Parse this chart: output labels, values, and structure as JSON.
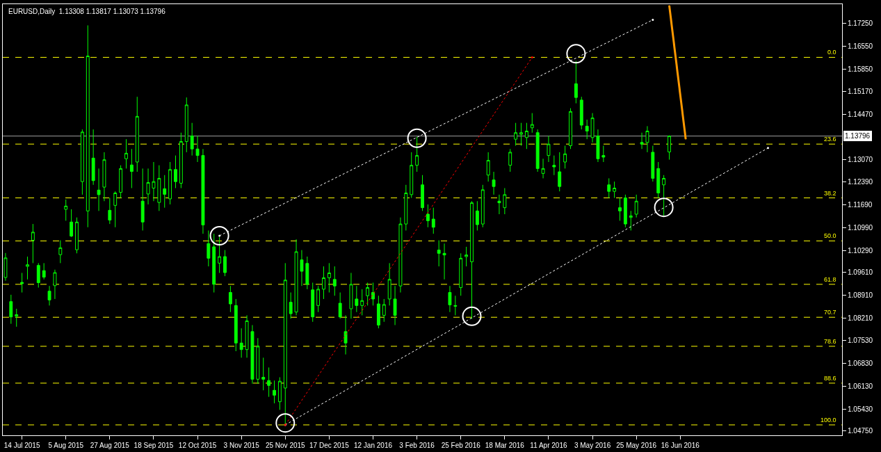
{
  "chart_data": {
    "type": "candlestick",
    "title": "EURUSD,Daily  1.13308 1.13817 1.13073 1.13796",
    "color": "#00ff00",
    "grid": false,
    "categories": [
      null,
      null,
      null,
      "14 Jul 2015",
      null,
      null,
      null,
      null,
      null,
      null,
      null,
      "5 Aug 2015",
      null,
      null,
      null,
      null,
      null,
      null,
      null,
      "27 Aug 2015",
      null,
      null,
      null,
      null,
      null,
      null,
      null,
      "18 Sep 2015",
      null,
      null,
      null,
      null,
      null,
      null,
      null,
      "12 Oct 2015",
      null,
      null,
      null,
      null,
      null,
      null,
      null,
      "3 Nov 2015",
      null,
      null,
      null,
      null,
      null,
      null,
      null,
      "25 Nov 2015",
      null,
      null,
      null,
      null,
      null,
      null,
      null,
      "17 Dec 2015",
      null,
      null,
      null,
      null,
      null,
      null,
      null,
      "12 Jan 2016",
      null,
      null,
      null,
      null,
      null,
      null,
      null,
      "3 Feb 2016",
      null,
      null,
      null,
      null,
      null,
      null,
      null,
      "25 Feb 2016",
      null,
      null,
      null,
      null,
      null,
      null,
      null,
      "18 Mar 2016",
      null,
      null,
      null,
      null,
      null,
      null,
      null,
      "11 Apr 2016",
      null,
      null,
      null,
      null,
      null,
      null,
      null,
      "3 May 2016",
      null,
      null,
      null,
      null,
      null,
      null,
      null,
      "25 May 2016",
      null,
      null,
      null,
      null,
      null,
      null,
      null,
      "16 Jun 2016",
      null,
      null,
      null,
      null,
      null,
      null,
      null,
      null,
      null,
      null,
      null,
      null,
      null,
      null,
      null,
      null,
      null,
      null,
      null,
      null,
      null,
      null,
      null,
      null,
      null,
      null,
      null,
      null,
      null
    ],
    "ohlc": [
      [
        1.0946,
        1.1021,
        1.0936,
        1.1006
      ],
      [
        1.0872,
        1.0893,
        1.0804,
        1.0825
      ],
      [
        1.0827,
        1.085,
        1.0795,
        1.0832
      ],
      [
        1.0931,
        1.096,
        1.09,
        1.0927
      ],
      [
        1.098,
        1.101,
        1.094,
        1.0985
      ],
      [
        1.106,
        1.111,
        1.099,
        1.1085
      ],
      [
        1.0983,
        1.099,
        1.0915,
        1.093
      ],
      [
        1.0967,
        1.099,
        1.094,
        1.0947
      ],
      [
        1.0904,
        1.092,
        1.086,
        1.0877
      ],
      [
        1.0921,
        1.097,
        1.088,
        1.0961
      ],
      [
        1.1016,
        1.106,
        1.099,
        1.1037
      ],
      [
        1.1155,
        1.1185,
        1.112,
        1.1165
      ],
      [
        1.1116,
        1.1155,
        1.107,
        1.1073
      ],
      [
        1.1031,
        1.113,
        1.102,
        1.1116
      ],
      [
        1.124,
        1.14,
        1.12,
        1.1392
      ],
      [
        1.115,
        1.1719,
        1.11,
        1.1625
      ],
      [
        1.1312,
        1.14,
        1.123,
        1.1243
      ],
      [
        1.1214,
        1.128,
        1.115,
        1.12
      ],
      [
        1.1223,
        1.133,
        1.118,
        1.1307
      ],
      [
        1.1152,
        1.119,
        1.111,
        1.1122
      ],
      [
        1.1167,
        1.121,
        1.11,
        1.1205
      ],
      [
        1.1207,
        1.129,
        1.119,
        1.128
      ],
      [
        1.131,
        1.137,
        1.128,
        1.1327
      ],
      [
        1.1291,
        1.134,
        1.122,
        1.1271
      ],
      [
        1.13,
        1.15,
        1.127,
        1.144
      ],
      [
        1.118,
        1.128,
        1.109,
        1.1116
      ],
      [
        1.1202,
        1.128,
        1.117,
        1.1237
      ],
      [
        1.122,
        1.13,
        1.118,
        1.124
      ],
      [
        1.1176,
        1.129,
        1.115,
        1.125
      ],
      [
        1.1218,
        1.126,
        1.116,
        1.1201
      ],
      [
        1.1187,
        1.13,
        1.117,
        1.1277
      ],
      [
        1.1277,
        1.132,
        1.122,
        1.124
      ],
      [
        1.1235,
        1.139,
        1.122,
        1.1363
      ],
      [
        1.1363,
        1.1498,
        1.133,
        1.1475
      ],
      [
        1.138,
        1.142,
        1.132,
        1.134
      ],
      [
        1.134,
        1.138,
        1.13,
        1.132
      ],
      [
        1.132,
        1.134,
        1.108,
        1.1107
      ],
      [
        1.105,
        1.109,
        1.098,
        1.1005
      ],
      [
        1.104,
        1.108,
        1.09,
        1.0925
      ],
      [
        1.099,
        1.107,
        1.096,
        1.101
      ],
      [
        1.101,
        1.103,
        1.095,
        1.0961
      ],
      [
        1.09,
        1.092,
        1.084,
        1.0865
      ],
      [
        1.086,
        1.088,
        1.072,
        1.0745
      ],
      [
        1.0745,
        1.079,
        1.07,
        1.0725
      ],
      [
        1.0725,
        1.083,
        1.07,
        1.0813
      ],
      [
        1.078,
        1.08,
        1.062,
        1.0634
      ],
      [
        1.0634,
        1.076,
        1.062,
        1.0735
      ],
      [
        1.064,
        1.07,
        1.06,
        1.0634
      ],
      [
        1.063,
        1.067,
        1.058,
        1.0615
      ],
      [
        1.06,
        1.063,
        1.056,
        1.0585
      ],
      [
        1.0565,
        1.064,
        1.054,
        1.0628
      ],
      [
        1.0607,
        1.099,
        1.0494,
        1.0938
      ],
      [
        1.087,
        1.09,
        1.082,
        1.0835
      ],
      [
        1.084,
        1.1063,
        1.083,
        1.1025
      ],
      [
        1.1,
        1.103,
        1.092,
        1.0965
      ],
      [
        1.0989,
        1.101,
        1.091,
        1.0925
      ],
      [
        1.0908,
        1.093,
        1.081,
        1.0825
      ],
      [
        1.086,
        1.092,
        1.084,
        1.091
      ],
      [
        1.091,
        1.098,
        1.088,
        1.0945
      ],
      [
        1.0945,
        1.099,
        1.09,
        1.096
      ],
      [
        1.094,
        1.098,
        1.089,
        1.092
      ],
      [
        1.0867,
        1.09,
        1.082,
        1.0825
      ],
      [
        1.078,
        1.083,
        1.071,
        1.0745
      ],
      [
        1.085,
        1.096,
        1.082,
        1.0925
      ],
      [
        1.088,
        1.092,
        1.084,
        1.086
      ],
      [
        1.086,
        1.091,
        1.083,
        1.0875
      ],
      [
        1.089,
        1.093,
        1.086,
        1.0915
      ],
      [
        1.09,
        1.093,
        1.086,
        1.088
      ],
      [
        1.0865,
        1.089,
        1.079,
        1.08
      ],
      [
        1.083,
        1.088,
        1.081,
        1.0863
      ],
      [
        1.088,
        1.099,
        1.086,
        1.094
      ],
      [
        1.088,
        1.092,
        1.08,
        1.083
      ],
      [
        1.092,
        1.113,
        1.09,
        1.111
      ],
      [
        1.111,
        1.123,
        1.109,
        1.1205
      ],
      [
        1.12,
        1.133,
        1.119,
        1.129
      ],
      [
        1.129,
        1.1377,
        1.127,
        1.132
      ],
      [
        1.123,
        1.126,
        1.115,
        1.116
      ],
      [
        1.114,
        1.117,
        1.11,
        1.112
      ],
      [
        1.1125,
        1.116,
        1.108,
        1.11
      ],
      [
        1.103,
        1.106,
        1.098,
        1.102
      ],
      [
        1.102,
        1.105,
        1.094,
        1.1015
      ],
      [
        1.09,
        1.092,
        1.084,
        1.0862
      ],
      [
        1.086,
        1.089,
        1.083,
        1.0858
      ],
      [
        1.0915,
        1.102,
        1.089,
        1.1005
      ],
      [
        1.101,
        1.104,
        1.098,
        1.1015
      ],
      [
        1.0994,
        1.118,
        1.0819,
        1.1175
      ],
      [
        1.115,
        1.118,
        1.109,
        1.1108
      ],
      [
        1.111,
        1.123,
        1.11,
        1.1215
      ],
      [
        1.126,
        1.133,
        1.124,
        1.1305
      ],
      [
        1.1245,
        1.127,
        1.12,
        1.1225
      ],
      [
        1.118,
        1.12,
        1.114,
        1.1175
      ],
      [
        1.116,
        1.122,
        1.114,
        1.12
      ],
      [
        1.129,
        1.134,
        1.127,
        1.133
      ],
      [
        1.137,
        1.142,
        1.135,
        1.139
      ],
      [
        1.1385,
        1.142,
        1.135,
        1.139
      ],
      [
        1.1375,
        1.142,
        1.134,
        1.1395
      ],
      [
        1.1405,
        1.145,
        1.139,
        1.1415
      ],
      [
        1.139,
        1.14,
        1.127,
        1.128
      ],
      [
        1.1265,
        1.131,
        1.125,
        1.128
      ],
      [
        1.132,
        1.138,
        1.13,
        1.1355
      ],
      [
        1.129,
        1.132,
        1.126,
        1.1285
      ],
      [
        1.127,
        1.133,
        1.121,
        1.1225
      ],
      [
        1.13,
        1.135,
        1.128,
        1.1325
      ],
      [
        1.135,
        1.1465,
        1.134,
        1.1455
      ],
      [
        1.154,
        1.161,
        1.148,
        1.1498
      ],
      [
        1.149,
        1.15,
        1.14,
        1.1413
      ],
      [
        1.141,
        1.143,
        1.137,
        1.1395
      ],
      [
        1.1375,
        1.145,
        1.136,
        1.1435
      ],
      [
        1.138,
        1.14,
        1.13,
        1.131
      ],
      [
        1.132,
        1.135,
        1.13,
        1.1315
      ],
      [
        1.123,
        1.125,
        1.119,
        1.121
      ],
      [
        1.121,
        1.124,
        1.119,
        1.122
      ],
      [
        1.116,
        1.119,
        1.112,
        1.115
      ],
      [
        1.119,
        1.12,
        1.11,
        1.111
      ],
      [
        1.113,
        1.115,
        1.109,
        1.1135
      ],
      [
        1.114,
        1.12,
        1.113,
        1.118
      ],
      [
        1.136,
        1.139,
        1.134,
        1.1355
      ],
      [
        1.136,
        1.141,
        1.133,
        1.1395
      ],
      [
        1.133,
        1.135,
        1.124,
        1.125
      ],
      [
        1.128,
        1.13,
        1.119,
        1.1205
      ],
      [
        1.123,
        1.126,
        1.1135,
        1.125
      ],
      [
        1.13308,
        1.13817,
        1.13073,
        1.13796
      ],
      null,
      null,
      null,
      null,
      null,
      null,
      null,
      null,
      null,
      null,
      null,
      null,
      null,
      null,
      null,
      null,
      null,
      null,
      null,
      null,
      null,
      null,
      null,
      null,
      null,
      null,
      null,
      null,
      null,
      null,
      null
    ],
    "series": [
      {
        "type": "line",
        "color": "#ffffff",
        "line_style": "dotted",
        "values": [
          null,
          null,
          null,
          null,
          null,
          null,
          null,
          null,
          null,
          null,
          null,
          null,
          null,
          null,
          null,
          null,
          null,
          null,
          null,
          null,
          null,
          null,
          null,
          null,
          null,
          null,
          null,
          null,
          null,
          null,
          null,
          null,
          null,
          null,
          null,
          null,
          null,
          null,
          null,
          1.1074,
          null,
          null,
          null,
          null,
          null,
          null,
          null,
          null,
          null,
          null,
          null,
          null,
          null,
          null,
          null,
          null,
          null,
          null,
          null,
          null,
          null,
          null,
          null,
          null,
          null,
          null,
          null,
          null,
          null,
          null,
          null,
          null,
          null,
          null,
          null,
          null,
          null,
          null,
          null,
          null,
          null,
          null,
          null,
          null,
          null,
          null,
          null,
          null,
          null,
          null,
          null,
          null,
          null,
          null,
          null,
          null,
          null,
          null,
          null,
          null,
          null,
          null,
          null,
          null,
          null,
          null,
          null,
          null,
          null,
          null,
          null,
          null,
          null,
          null,
          null,
          null,
          null,
          null,
          1.1736,
          null,
          null,
          null,
          null,
          null,
          null,
          null,
          null,
          null,
          null,
          null,
          null,
          null,
          null,
          null,
          null,
          null,
          null,
          null,
          null,
          null,
          null,
          null,
          null,
          null,
          null,
          null,
          null,
          null,
          null,
          null,
          null,
          null,
          null
        ]
      },
      {
        "type": "line",
        "color": "#ffffff",
        "line_style": "dotted",
        "values": [
          null,
          null,
          null,
          null,
          null,
          null,
          null,
          null,
          null,
          null,
          null,
          null,
          null,
          null,
          null,
          null,
          null,
          null,
          null,
          null,
          null,
          null,
          null,
          null,
          null,
          null,
          null,
          null,
          null,
          null,
          null,
          null,
          null,
          null,
          null,
          null,
          null,
          null,
          null,
          null,
          null,
          null,
          null,
          null,
          null,
          null,
          null,
          null,
          null,
          null,
          null,
          1.0494,
          null,
          null,
          null,
          null,
          null,
          null,
          null,
          null,
          null,
          null,
          null,
          null,
          null,
          null,
          null,
          null,
          null,
          null,
          null,
          null,
          null,
          null,
          null,
          null,
          null,
          null,
          null,
          null,
          null,
          null,
          null,
          null,
          null,
          null,
          null,
          null,
          null,
          null,
          null,
          null,
          null,
          null,
          null,
          null,
          null,
          null,
          null,
          null,
          null,
          null,
          null,
          null,
          null,
          null,
          null,
          null,
          null,
          null,
          null,
          null,
          null,
          null,
          null,
          null,
          null,
          null,
          null,
          null,
          null,
          null,
          null,
          null,
          null,
          null,
          null,
          null,
          null,
          null,
          null,
          null,
          null,
          null,
          null,
          null,
          null,
          null,
          null,
          1.1343,
          null,
          null,
          null,
          null,
          null,
          null,
          null,
          null,
          null,
          null,
          null,
          null,
          null
        ]
      },
      {
        "type": "line",
        "color": "#ff0000",
        "line_style": "dotted",
        "values": [
          null,
          null,
          null,
          null,
          null,
          null,
          null,
          null,
          null,
          null,
          null,
          null,
          null,
          null,
          null,
          null,
          null,
          null,
          null,
          null,
          null,
          null,
          null,
          null,
          null,
          null,
          null,
          null,
          null,
          null,
          null,
          null,
          null,
          null,
          null,
          null,
          null,
          null,
          null,
          null,
          null,
          null,
          null,
          null,
          null,
          null,
          null,
          null,
          null,
          null,
          null,
          1.0494,
          null,
          null,
          null,
          null,
          null,
          null,
          null,
          null,
          null,
          null,
          null,
          null,
          null,
          null,
          null,
          null,
          null,
          null,
          null,
          null,
          null,
          null,
          null,
          null,
          null,
          null,
          null,
          null,
          null,
          null,
          null,
          null,
          null,
          null,
          null,
          null,
          null,
          null,
          null,
          null,
          null,
          null,
          null,
          null,
          1.1621,
          null,
          null,
          null,
          null,
          null,
          null,
          null,
          null,
          null,
          null,
          null,
          null,
          null,
          null,
          null,
          null,
          null,
          null,
          null,
          null,
          null,
          null,
          null,
          null,
          null,
          null,
          null,
          null,
          null,
          null,
          null,
          null,
          null,
          null,
          null,
          null,
          null,
          null,
          null,
          null,
          null,
          null,
          null,
          null,
          null,
          null,
          null,
          null,
          null,
          null,
          null,
          null,
          null,
          null,
          null,
          null
        ]
      },
      {
        "type": "scatter",
        "color": "#ffffff",
        "marker": "circle",
        "values": [
          null,
          null,
          null,
          null,
          null,
          null,
          null,
          null,
          null,
          null,
          null,
          null,
          null,
          null,
          null,
          null,
          null,
          null,
          null,
          null,
          null,
          null,
          null,
          null,
          null,
          null,
          null,
          null,
          null,
          null,
          null,
          null,
          null,
          null,
          null,
          null,
          null,
          null,
          null,
          1.1074,
          null,
          null,
          null,
          null,
          null,
          null,
          null,
          null,
          null,
          null,
          null,
          1.05,
          null,
          null,
          null,
          null,
          null,
          null,
          null,
          null,
          null,
          null,
          null,
          null,
          null,
          null,
          null,
          null,
          null,
          null,
          null,
          null,
          null,
          null,
          null,
          1.1373,
          null,
          null,
          null,
          null,
          null,
          null,
          null,
          null,
          null,
          1.0827,
          null,
          null,
          null,
          null,
          null,
          null,
          null,
          null,
          null,
          null,
          null,
          null,
          null,
          null,
          null,
          null,
          null,
          null,
          1.1632,
          null,
          null,
          null,
          null,
          null,
          null,
          null,
          null,
          null,
          null,
          null,
          null,
          null,
          null,
          null,
          1.1161,
          null,
          null,
          null,
          null,
          null,
          null,
          null,
          null,
          null,
          null,
          null,
          null,
          null,
          null,
          null,
          null,
          null,
          null,
          null,
          null,
          null,
          null,
          null,
          null,
          null,
          null,
          null,
          null,
          null,
          null,
          null,
          null
        ]
      },
      {
        "type": "line",
        "color": "#ff9900",
        "line_style": "solid",
        "values": [
          null,
          null,
          null,
          null,
          null,
          null,
          null,
          null,
          null,
          null,
          null,
          null,
          null,
          null,
          null,
          null,
          null,
          null,
          null,
          null,
          null,
          null,
          null,
          null,
          null,
          null,
          null,
          null,
          null,
          null,
          null,
          null,
          null,
          null,
          null,
          null,
          null,
          null,
          null,
          null,
          null,
          null,
          null,
          null,
          null,
          null,
          null,
          null,
          null,
          null,
          null,
          null,
          null,
          null,
          null,
          null,
          null,
          null,
          null,
          null,
          null,
          null,
          null,
          null,
          null,
          null,
          null,
          null,
          null,
          null,
          null,
          null,
          null,
          null,
          null,
          null,
          null,
          null,
          null,
          null,
          null,
          null,
          null,
          null,
          null,
          null,
          null,
          null,
          null,
          null,
          null,
          null,
          null,
          null,
          null,
          null,
          null,
          null,
          null,
          null,
          null,
          null,
          null,
          null,
          null,
          null,
          null,
          null,
          null,
          null,
          null,
          null,
          null,
          null,
          null,
          null,
          null,
          null,
          null,
          null,
          null,
          1.178,
          null,
          null,
          1.137,
          null,
          null,
          null,
          null,
          null,
          null,
          null,
          null,
          null,
          null,
          null,
          null,
          null,
          null,
          null,
          null,
          null,
          null,
          null,
          null,
          null,
          null,
          null,
          null,
          null,
          null,
          null,
          null
        ]
      }
    ],
    "ref_lines": [
      {
        "axis": "y",
        "value": 1.13796,
        "label": "1.13796",
        "color": "#a0a0a0",
        "line_style": "solid"
      },
      {
        "axis": "y",
        "value": 1.1621,
        "color": "#ffff00",
        "line_style": "dashed"
      },
      {
        "axis": "y",
        "value": 1.1355,
        "color": "#ffff00",
        "line_style": "dashed"
      },
      {
        "axis": "y",
        "value": 1.119,
        "color": "#ffff00",
        "line_style": "dashed"
      },
      {
        "axis": "y",
        "value": 1.1058,
        "color": "#ffff00",
        "line_style": "dashed"
      },
      {
        "axis": "y",
        "value": 1.0925,
        "color": "#ffff00",
        "line_style": "dashed"
      },
      {
        "axis": "y",
        "value": 1.0824,
        "color": "#ffff00",
        "line_style": "dashed"
      },
      {
        "axis": "y",
        "value": 1.0735,
        "color": "#ffff00",
        "line_style": "dashed"
      },
      {
        "axis": "y",
        "value": 1.0622,
        "color": "#ffff00",
        "line_style": "dashed"
      },
      {
        "axis": "y",
        "value": 1.0494,
        "color": "#ffff00",
        "line_style": "dashed"
      }
    ],
    "annotations": [
      {
        "text": "0.0",
        "y": 1.1621
      },
      {
        "text": "23.6",
        "y": 1.1355
      },
      {
        "text": "38.2",
        "y": 1.119
      },
      {
        "text": "50.0",
        "y": 1.1058
      },
      {
        "text": "61.8",
        "y": 1.0925
      },
      {
        "text": "70.7",
        "y": 1.0824
      },
      {
        "text": "78.6",
        "y": 1.0735
      },
      {
        "text": "88.6",
        "y": 1.0622
      },
      {
        "text": "100.0",
        "y": 1.0494
      }
    ],
    "ylim": [
      1.0462,
      1.1784
    ],
    "yticks": [
      {
        "value": 1.1725,
        "label": "1.17250"
      },
      {
        "value": 1.1655,
        "label": "1.16550"
      },
      {
        "value": 1.1585,
        "label": "1.15850"
      },
      {
        "value": 1.1517,
        "label": "1.15170"
      },
      {
        "value": 1.1447,
        "label": "1.14470"
      },
      {
        "value": 1.1307,
        "label": "1.13070"
      },
      {
        "value": 1.1239,
        "label": "1.12390"
      },
      {
        "value": 1.1169,
        "label": "1.11690"
      },
      {
        "value": 1.1099,
        "label": "1.10990"
      },
      {
        "value": 1.1029,
        "label": "1.10290"
      },
      {
        "value": 1.0961,
        "label": "1.09610"
      },
      {
        "value": 1.0891,
        "label": "1.08910"
      },
      {
        "value": 1.0821,
        "label": "1.08210"
      },
      {
        "value": 1.0753,
        "label": "1.07530"
      },
      {
        "value": 1.0683,
        "label": "1.06830"
      },
      {
        "value": 1.0613,
        "label": "1.06130"
      },
      {
        "value": 1.0543,
        "label": "1.05430"
      },
      {
        "value": 1.0475,
        "label": "1.04750"
      }
    ]
  }
}
